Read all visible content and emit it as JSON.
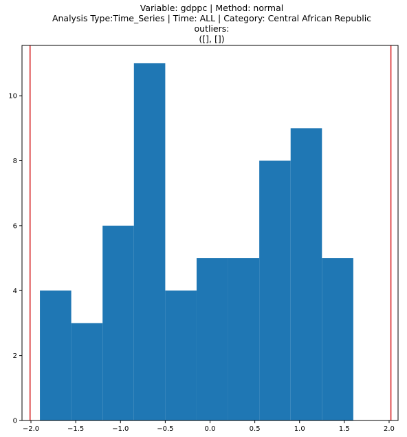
{
  "title_lines": [
    "Variable: gdppc | Method: normal",
    "Analysis Type:Time_Series | Time: ALL | Category: Central African Republic",
    "outliers:",
    "([], [])"
  ],
  "colors": {
    "bar": "#1f77b4",
    "threshold": "#d62728",
    "axis": "#000000",
    "background": "#ffffff"
  },
  "chart_data": {
    "type": "bar",
    "title": "Variable: gdppc | Method: normal\nAnalysis Type:Time_Series | Time: ALL | Category: Central African Republic\noutliers:\n([], [])",
    "xlabel": "",
    "ylabel": "",
    "xlim": [
      -2.1,
      2.1
    ],
    "ylim": [
      0,
      11.55
    ],
    "grid": false,
    "bins": [
      {
        "x0": -1.9,
        "x1": -1.55,
        "count": 4
      },
      {
        "x0": -1.55,
        "x1": -1.2,
        "count": 3
      },
      {
        "x0": -1.2,
        "x1": -0.85,
        "count": 6
      },
      {
        "x0": -0.85,
        "x1": -0.5,
        "count": 11
      },
      {
        "x0": -0.5,
        "x1": -0.15,
        "count": 4
      },
      {
        "x0": -0.15,
        "x1": 0.2,
        "count": 5
      },
      {
        "x0": 0.2,
        "x1": 0.55,
        "count": 5
      },
      {
        "x0": 0.55,
        "x1": 0.9,
        "count": 8
      },
      {
        "x0": 0.9,
        "x1": 1.25,
        "count": 9
      },
      {
        "x0": 1.25,
        "x1": 1.6,
        "count": 5
      }
    ],
    "threshold_lines": [
      -2.01,
      2.02
    ],
    "x_ticks": [
      -2.0,
      -1.5,
      -1.0,
      -0.5,
      0.0,
      0.5,
      1.0,
      1.5,
      2.0
    ],
    "x_tick_labels": [
      "−2.0",
      "−1.5",
      "−1.0",
      "−0.5",
      "0.0",
      "0.5",
      "1.0",
      "1.5",
      "2.0"
    ],
    "y_ticks": [
      0,
      2,
      4,
      6,
      8,
      10
    ],
    "y_tick_labels": [
      "0",
      "2",
      "4",
      "6",
      "8",
      "10"
    ]
  }
}
